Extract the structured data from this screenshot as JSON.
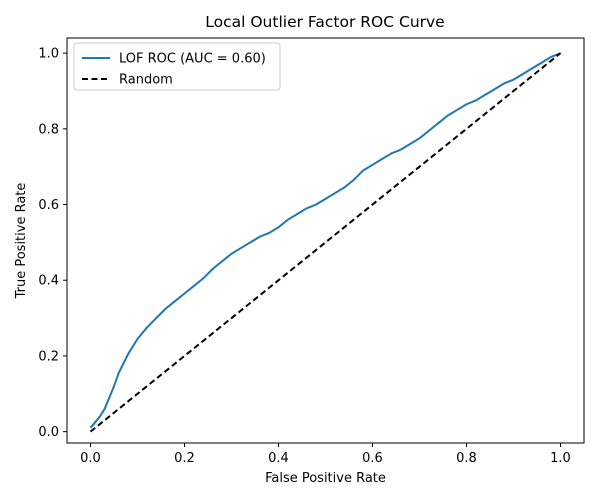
{
  "chart_data": {
    "type": "line",
    "title": "Local Outlier Factor ROC Curve",
    "xlabel": "False Positive Rate",
    "ylabel": "True Positive Rate",
    "xlim": [
      -0.05,
      1.05
    ],
    "ylim": [
      -0.03,
      1.04
    ],
    "xticks": [
      0.0,
      0.2,
      0.4,
      0.6,
      0.8,
      1.0
    ],
    "xtick_labels": [
      "0.0",
      "0.2",
      "0.4",
      "0.6",
      "0.8",
      "1.0"
    ],
    "yticks": [
      0.0,
      0.2,
      0.4,
      0.6,
      0.8,
      1.0
    ],
    "ytick_labels": [
      "0.0",
      "0.2",
      "0.4",
      "0.6",
      "0.8",
      "1.0"
    ],
    "grid": false,
    "legend_position": "top-left",
    "series": [
      {
        "name": "LOF ROC (AUC = 0.60)",
        "color": "#1f77b4",
        "style": "solid",
        "x": [
          0.0,
          0.01,
          0.02,
          0.03,
          0.04,
          0.05,
          0.06,
          0.07,
          0.08,
          0.09,
          0.1,
          0.12,
          0.14,
          0.16,
          0.18,
          0.2,
          0.22,
          0.24,
          0.26,
          0.28,
          0.3,
          0.32,
          0.34,
          0.36,
          0.38,
          0.4,
          0.42,
          0.44,
          0.46,
          0.48,
          0.5,
          0.52,
          0.54,
          0.56,
          0.58,
          0.6,
          0.62,
          0.64,
          0.66,
          0.68,
          0.7,
          0.72,
          0.74,
          0.76,
          0.78,
          0.8,
          0.82,
          0.84,
          0.86,
          0.88,
          0.9,
          0.92,
          0.94,
          0.96,
          0.98,
          1.0
        ],
        "y": [
          0.01,
          0.025,
          0.04,
          0.06,
          0.09,
          0.12,
          0.155,
          0.18,
          0.205,
          0.225,
          0.245,
          0.275,
          0.3,
          0.325,
          0.345,
          0.365,
          0.385,
          0.405,
          0.43,
          0.45,
          0.47,
          0.485,
          0.5,
          0.515,
          0.525,
          0.54,
          0.56,
          0.575,
          0.59,
          0.6,
          0.615,
          0.63,
          0.645,
          0.665,
          0.69,
          0.705,
          0.72,
          0.735,
          0.745,
          0.76,
          0.775,
          0.795,
          0.815,
          0.835,
          0.85,
          0.865,
          0.875,
          0.89,
          0.905,
          0.92,
          0.93,
          0.945,
          0.96,
          0.975,
          0.99,
          1.0
        ]
      },
      {
        "name": "Random",
        "color": "#000000",
        "style": "dashed",
        "x": [
          0.0,
          1.0
        ],
        "y": [
          0.0,
          1.0
        ]
      }
    ]
  }
}
